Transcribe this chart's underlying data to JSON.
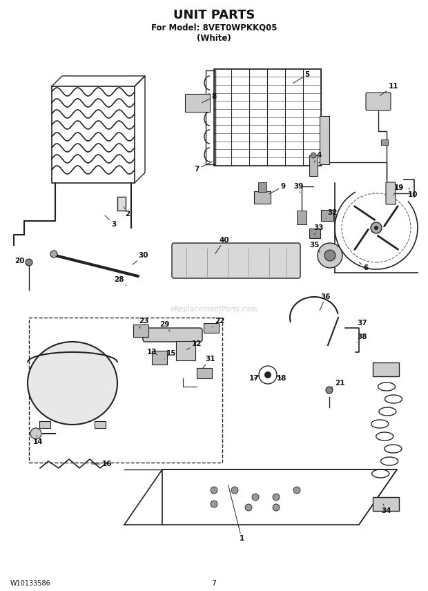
{
  "title": "UNIT PARTS",
  "subtitle": "For Model: 8VET0WPKKQ05",
  "subtitle2": "(White)",
  "doc_number": "W10133586",
  "page_number": "7",
  "bg_color": "#ffffff",
  "line_color": "#222222",
  "text_color": "#111111",
  "watermark": "eReplacementParts.com",
  "fig_w": 6.2,
  "fig_h": 8.56,
  "dpi": 100
}
